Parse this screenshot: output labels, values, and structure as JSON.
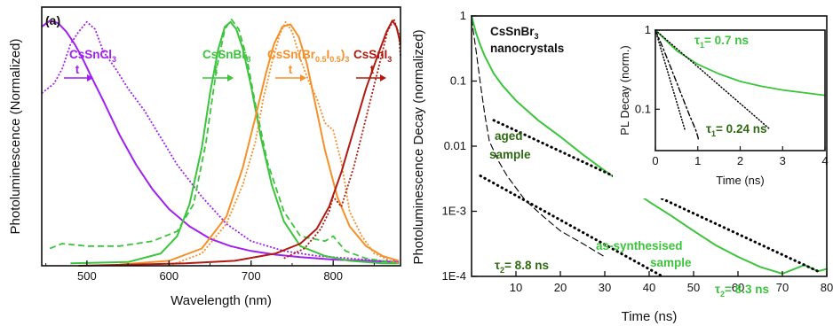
{
  "colors": {
    "CsSnCl3": "#a020f0",
    "CsSnBr3": "#3cc43c",
    "CsSnBrI": "#f5902a",
    "CsSnI3": "#b01a10",
    "fit": "#000000",
    "label_green": "#2e6a12"
  },
  "chart_data": [
    {
      "panel": "(a)",
      "type": "line",
      "xlabel": "Wavelength (nm)",
      "ylabel": "Photoluminescence (Normalized)",
      "xlim": [
        445,
        882
      ],
      "ylim": [
        0,
        1.05
      ],
      "x_ticks": [
        "500",
        "600",
        "700",
        "800"
      ],
      "y_ticks": [],
      "series_labels": {
        "CsSnCl3": {
          "base": "CsSnCl",
          "sub": "3",
          "tag": "t"
        },
        "CsSnBr3": {
          "base": "CsSnBr",
          "sub": "3",
          "tag": "t"
        },
        "CsSnBrI": {
          "p1": "CsSn(Br",
          "s1": "0.5",
          "p2": "I",
          "s2": "0.5",
          "p3": ")",
          "s3": "3",
          "tag": "t"
        },
        "CsSnI3": {
          "base": "CsSnI",
          "sub": "3",
          "tag": "t"
        }
      },
      "series": [
        {
          "key": "CsSnCl3",
          "style": "solid",
          "x": [
            445,
            455,
            465,
            475,
            485,
            495,
            505,
            520,
            540,
            560,
            580,
            600,
            625,
            650,
            675,
            700,
            730,
            760,
            800,
            840,
            880
          ],
          "y": [
            0.97,
            0.995,
            0.985,
            0.95,
            0.9,
            0.84,
            0.77,
            0.67,
            0.53,
            0.41,
            0.31,
            0.23,
            0.16,
            0.11,
            0.08,
            0.06,
            0.045,
            0.035,
            0.025,
            0.02,
            0.015
          ]
        },
        {
          "key": "CsSnCl3",
          "style": "dotted",
          "x": [
            445,
            460,
            470,
            480,
            490,
            500,
            510,
            520,
            535,
            550,
            570,
            590,
            610,
            640,
            670,
            700,
            740,
            780,
            820,
            860,
            880
          ],
          "y": [
            0.7,
            0.74,
            0.8,
            0.9,
            0.95,
            0.99,
            0.96,
            0.87,
            0.8,
            0.72,
            0.63,
            0.52,
            0.41,
            0.28,
            0.17,
            0.1,
            0.06,
            0.04,
            0.03,
            0.02,
            0.02
          ]
        },
        {
          "key": "CsSnBr3",
          "style": "solid",
          "x": [
            480,
            550,
            590,
            610,
            625,
            640,
            650,
            660,
            668,
            675,
            682,
            690,
            700,
            712,
            725,
            740,
            760,
            790,
            820,
            860,
            880
          ],
          "y": [
            0.01,
            0.015,
            0.05,
            0.12,
            0.25,
            0.48,
            0.7,
            0.88,
            0.97,
            0.99,
            0.96,
            0.88,
            0.73,
            0.52,
            0.33,
            0.18,
            0.08,
            0.04,
            0.02,
            0.01,
            0.01
          ]
        },
        {
          "key": "CsSnBr3",
          "style": "dashed",
          "x": [
            455,
            470,
            500,
            540,
            580,
            610,
            630,
            645,
            658,
            668,
            676,
            685,
            695,
            705,
            720,
            740,
            760,
            790,
            800,
            815,
            840,
            880
          ],
          "y": [
            0.07,
            0.09,
            0.08,
            0.08,
            0.1,
            0.14,
            0.25,
            0.5,
            0.8,
            0.96,
            1.0,
            0.96,
            0.84,
            0.66,
            0.42,
            0.22,
            0.12,
            0.1,
            0.12,
            0.06,
            0.03,
            0.01
          ]
        },
        {
          "key": "CsSnBrI",
          "style": "solid",
          "x": [
            540,
            600,
            640,
            670,
            690,
            705,
            718,
            728,
            738,
            748,
            758,
            768,
            778,
            790,
            805,
            820,
            840,
            860,
            880
          ],
          "y": [
            0.005,
            0.02,
            0.07,
            0.2,
            0.4,
            0.6,
            0.78,
            0.9,
            0.97,
            0.98,
            0.93,
            0.82,
            0.66,
            0.47,
            0.28,
            0.16,
            0.08,
            0.04,
            0.02
          ]
        },
        {
          "key": "CsSnBrI",
          "style": "dotted",
          "x": [
            600,
            640,
            670,
            690,
            705,
            715,
            725,
            735,
            742,
            750,
            760,
            770,
            780,
            790,
            800,
            810,
            820,
            835,
            850,
            870,
            880
          ],
          "y": [
            0.0,
            0.05,
            0.17,
            0.33,
            0.5,
            0.68,
            0.82,
            0.94,
            0.99,
            0.95,
            0.84,
            0.75,
            0.68,
            0.58,
            0.55,
            0.42,
            0.22,
            0.12,
            0.05,
            0.02,
            0.01
          ]
        },
        {
          "key": "CsSnI3",
          "style": "solid",
          "x": [
            490,
            560,
            620,
            680,
            730,
            760,
            780,
            795,
            810,
            825,
            840,
            855,
            865,
            872,
            877,
            882
          ],
          "y": [
            0.0,
            0.005,
            0.01,
            0.02,
            0.05,
            0.09,
            0.15,
            0.24,
            0.38,
            0.55,
            0.72,
            0.86,
            0.95,
            0.995,
            0.97,
            0.9
          ]
        },
        {
          "key": "CsSnI3",
          "style": "dotted",
          "x": [
            740,
            765,
            785,
            795,
            800,
            810,
            825,
            840,
            855,
            866,
            874,
            880,
            882
          ],
          "y": [
            0.03,
            0.07,
            0.15,
            0.22,
            0.28,
            0.24,
            0.4,
            0.6,
            0.8,
            0.95,
            1.0,
            0.94,
            0.85
          ]
        }
      ]
    },
    {
      "panel": "(b)",
      "type": "line",
      "xlabel": "Time (ns)",
      "ylabel": "Photoluminescence Decay (normalized)",
      "yscale": "log",
      "xlim": [
        0,
        80
      ],
      "ylim": [
        0.0001,
        1
      ],
      "x_ticks": [
        "10",
        "20",
        "30",
        "40",
        "50",
        "60",
        "70",
        "80"
      ],
      "y_ticks": [
        "1E-4",
        "1E-3",
        "0.01",
        "0.1",
        "1"
      ],
      "annotations": {
        "nanocrystals_line1": "CsSnBr",
        "nanocrystals_sub": "3",
        "nanocrystals_line2": "nanocrystals",
        "aged_line1": "aged",
        "aged_line2": "sample",
        "assynth_line1": "as-synthesised",
        "assynth_line2": "sample",
        "tau2_aged_sym": "τ",
        "tau2_aged_sub": "2",
        "tau2_aged_val": "= 8.8 ns",
        "tau2_as_sym": "τ",
        "tau2_as_sub": "2",
        "tau2_as_val": "= 8.3 ns"
      },
      "series": [
        {
          "name": "as-synthesised sample",
          "style": "solid",
          "x": [
            0,
            1,
            2,
            3,
            5,
            7,
            10,
            15,
            20,
            25,
            30,
            35,
            40,
            45,
            50,
            55,
            60,
            65,
            70,
            75,
            78,
            80
          ],
          "y": [
            1,
            0.55,
            0.35,
            0.24,
            0.13,
            0.085,
            0.05,
            0.025,
            0.014,
            0.0075,
            0.0042,
            0.0024,
            0.0014,
            0.00085,
            0.0005,
            0.0003,
            0.0002,
            0.00014,
            0.00011,
            0.00015,
            0.00012,
            0.00013
          ]
        },
        {
          "name": "aged sample",
          "style": "dashed",
          "x": [
            0,
            1,
            2,
            3,
            4,
            6,
            8,
            12,
            16,
            20,
            25,
            30
          ],
          "y": [
            0.9,
            0.3,
            0.09,
            0.03,
            0.012,
            0.006,
            0.0035,
            0.0015,
            0.00085,
            0.0005,
            0.00032,
            0.0002
          ]
        },
        {
          "name": "fit as-synthesised",
          "style": "fit",
          "x": [
            5,
            78
          ],
          "y": [
            0.025,
            0.00012
          ]
        },
        {
          "name": "fit aged",
          "style": "fit",
          "x": [
            2,
            43
          ],
          "y": [
            0.0035,
            0.0001
          ]
        }
      ]
    },
    {
      "panel": "inset",
      "type": "line",
      "xlabel": "Time (ns)",
      "ylabel": "PL Decay (norm.)",
      "yscale": "log",
      "xlim": [
        0,
        4
      ],
      "ylim": [
        0.03,
        1
      ],
      "x_ticks": [
        "0",
        "1",
        "2",
        "3",
        "4"
      ],
      "y_ticks": [
        "0.1",
        "1"
      ],
      "annotations": {
        "tau1_as_sym": "τ",
        "tau1_as_sub": "1",
        "tau1_as_val": "= 0.7 ns",
        "tau1_aged_sym": "τ",
        "tau1_aged_sub": "1",
        "tau1_aged_val": "= 0.24 ns"
      },
      "series": [
        {
          "name": "as-synthesised",
          "style": "solid",
          "x": [
            0,
            0.5,
            1.0,
            1.5,
            2.0,
            2.5,
            3.0,
            3.5,
            4.0
          ],
          "y": [
            1,
            0.55,
            0.37,
            0.28,
            0.225,
            0.195,
            0.175,
            0.162,
            0.15
          ]
        },
        {
          "name": "aged",
          "style": "dashdot",
          "x": [
            0,
            0.2,
            0.4,
            0.6,
            0.8,
            0.95,
            1.0,
            1.02
          ],
          "y": [
            1,
            0.56,
            0.3,
            0.16,
            0.085,
            0.055,
            0.045,
            0.04
          ]
        },
        {
          "name": "fit 0.7 ns",
          "style": "fit",
          "x": [
            0,
            2.7
          ],
          "y": [
            1,
            0.056
          ]
        },
        {
          "name": "fit 0.24 ns",
          "style": "fit",
          "x": [
            0,
            0.7
          ],
          "y": [
            1,
            0.054
          ]
        }
      ]
    }
  ]
}
